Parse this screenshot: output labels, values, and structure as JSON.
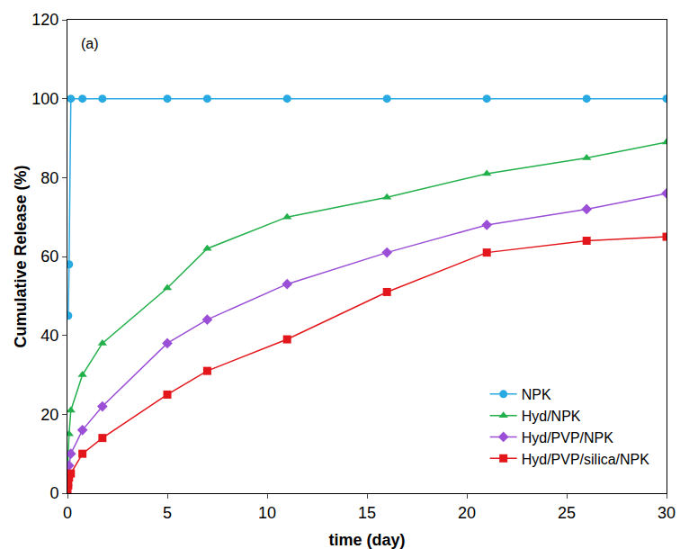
{
  "chart_data": {
    "type": "line",
    "x_label": "time (day)",
    "y_label": "Cumulative Release (%)",
    "annotations": [
      "(a)"
    ],
    "x": [
      0,
      0.04,
      0.08,
      0.17,
      0.75,
      1.75,
      5,
      7,
      11,
      16,
      21,
      26,
      30
    ],
    "series": [
      {
        "name": "NPK",
        "color": "#29a9e1",
        "marker": "circle",
        "values": [
          null,
          45,
          58,
          100,
          100,
          100,
          100,
          100,
          100,
          100,
          100,
          100,
          100
        ]
      },
      {
        "name": "Hyd/NPK",
        "color": "#22b04b",
        "marker": "triangle-up",
        "values": [
          5,
          10,
          15,
          21,
          30,
          38,
          52,
          62,
          70,
          75,
          81,
          85,
          89
        ]
      },
      {
        "name": "Hyd/PVP/NPK",
        "color": "#9a4fd6",
        "marker": "diamond",
        "values": [
          2,
          5,
          7,
          10,
          16,
          22,
          38,
          44,
          53,
          61,
          68,
          72,
          76
        ]
      },
      {
        "name": "Hyd/PVP/silica/NPK",
        "color": "#e3171b",
        "marker": "square",
        "values": [
          1,
          2,
          4,
          5,
          10,
          14,
          25,
          31,
          39,
          51,
          61,
          64,
          65
        ]
      }
    ],
    "xlim": [
      0,
      30
    ],
    "xticks": [
      0,
      5,
      10,
      15,
      20,
      25,
      30
    ],
    "ylim": [
      0,
      120
    ],
    "yticks": [
      0,
      20,
      40,
      60,
      80,
      100,
      120
    ],
    "grid": false,
    "legend": "bottom right"
  }
}
